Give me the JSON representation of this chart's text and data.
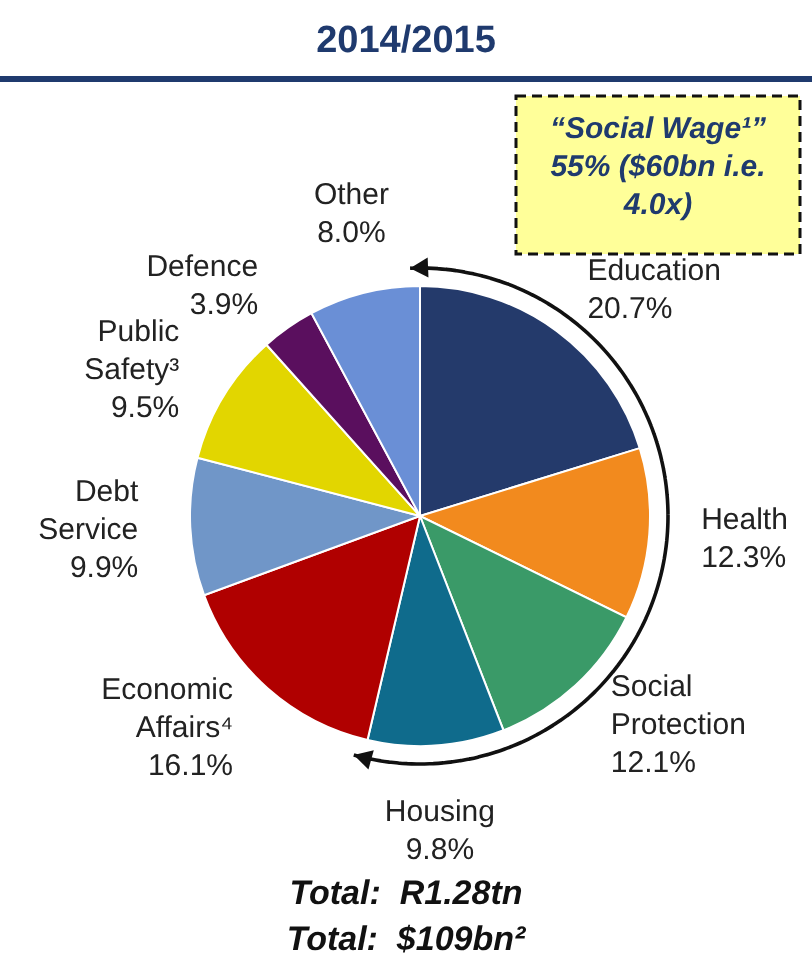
{
  "chart_data": {
    "type": "pie",
    "title": "2014/2015",
    "categories": [
      "Education",
      "Health",
      "Social Protection",
      "Housing",
      "Economic Affairs⁴",
      "Debt Service",
      "Public Safety³",
      "Defence",
      "Other"
    ],
    "values": [
      20.7,
      12.3,
      12.1,
      9.8,
      16.1,
      9.9,
      9.5,
      3.9,
      8.0
    ],
    "value_labels": [
      "20.7%",
      "12.3%",
      "12.1%",
      "9.8%",
      "16.1%",
      "9.9%",
      "9.5%",
      "3.9%",
      "8.0%"
    ],
    "colors": [
      "#243a6b",
      "#f28a1e",
      "#3a9a68",
      "#0f6b8c",
      "#b00000",
      "#7096c8",
      "#e2d600",
      "#5a0f5e",
      "#6a8fd6"
    ],
    "annotations": [
      "“Social Wage¹” 55% ($60bn i.e. 4.0x)",
      "Total:  R1.28tn",
      "Total:  $109bn²"
    ]
  }
}
